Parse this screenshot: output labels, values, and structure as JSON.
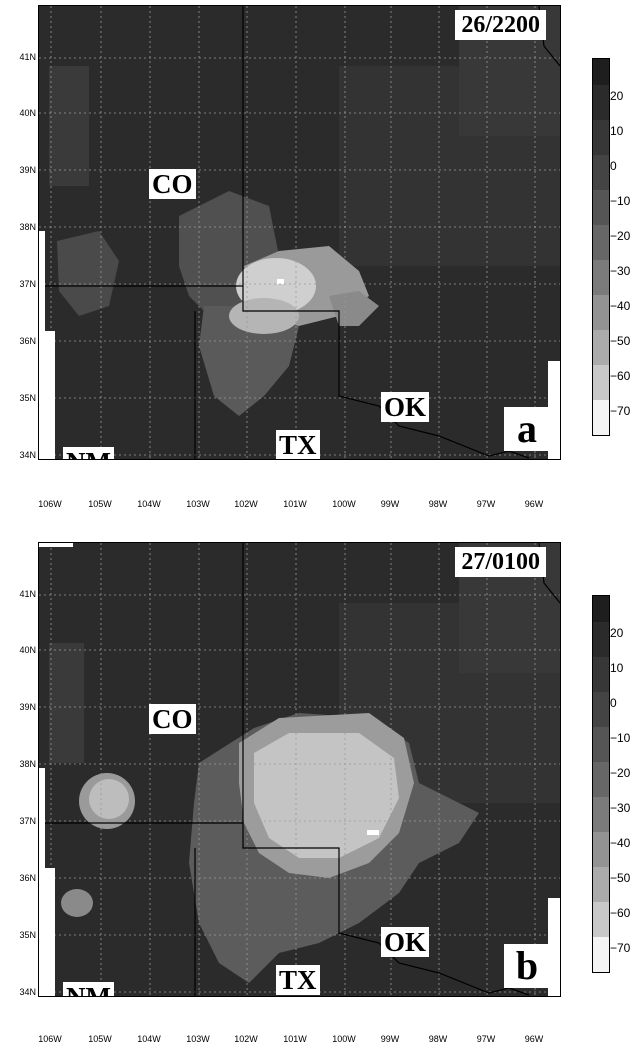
{
  "panels": [
    {
      "time": "26/2200",
      "letter": "a",
      "states": {
        "co": "CO",
        "nm": "NM",
        "tx": "TX",
        "ok": "OK"
      }
    },
    {
      "time": "27/0100",
      "letter": "b",
      "states": {
        "co": "CO",
        "nm": "NM",
        "tx": "TX",
        "ok": "OK"
      }
    }
  ],
  "lat_labels": [
    "41N",
    "40N",
    "39N",
    "38N",
    "37N",
    "36N",
    "35N",
    "34N"
  ],
  "lon_labels": [
    "106W",
    "105W",
    "104W",
    "103W",
    "102W",
    "101W",
    "100W",
    "99W",
    "98W",
    "97W",
    "96W"
  ],
  "colorbar": {
    "labels": [
      "20",
      "10",
      "0",
      "−10",
      "−20",
      "−30",
      "−40",
      "−50",
      "−60",
      "−70"
    ],
    "colors": [
      "#1e1e1e",
      "#2b2b2b",
      "#373737",
      "#444444",
      "#555555",
      "#676767",
      "#7b7b7b",
      "#939393",
      "#ababab",
      "#c8c8c8",
      "#f4f4f4"
    ]
  },
  "colors": {
    "background": "#2a2a2a",
    "grid": "#aaaaaa"
  }
}
